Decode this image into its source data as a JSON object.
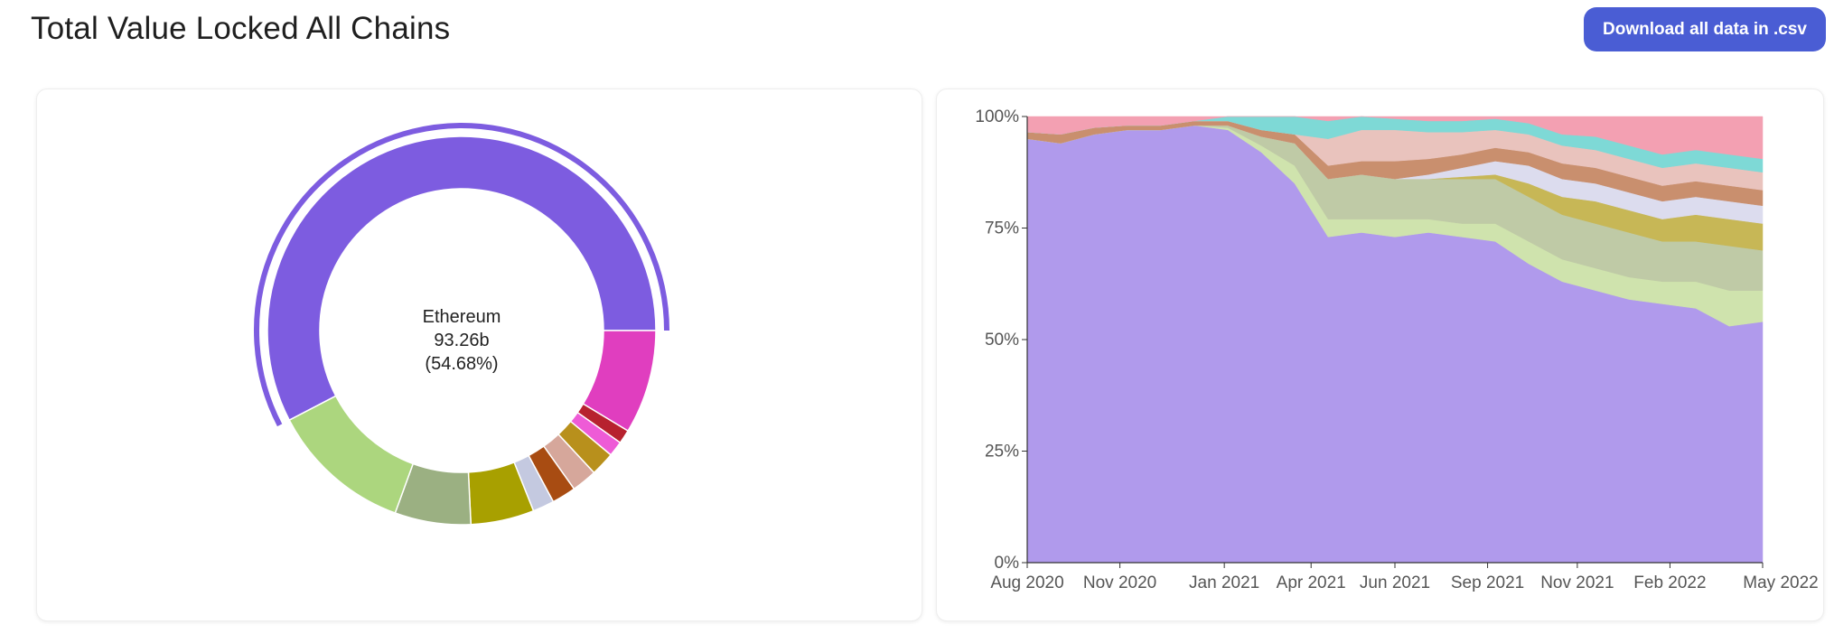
{
  "page": {
    "title": "Total Value Locked All Chains",
    "download_label": "Download all data in .csv"
  },
  "chart_data": [
    {
      "type": "pie",
      "variant": "donut",
      "highlighted": {
        "name": "Ethereum",
        "value_label": "93.26b",
        "percent_label": "(54.68%)"
      },
      "slices": [
        {
          "name": "Ethereum",
          "percent": 54.68,
          "color": "#7d5ce0"
        },
        {
          "name": "",
          "percent": 8.2,
          "color": "#e03ebf"
        },
        {
          "name": "",
          "percent": 1.1,
          "color": "#b7222f"
        },
        {
          "name": "",
          "percent": 1.2,
          "color": "#ee5bd6"
        },
        {
          "name": "",
          "percent": 1.9,
          "color": "#b8901c"
        },
        {
          "name": "",
          "percent": 2.0,
          "color": "#d6a79b"
        },
        {
          "name": "",
          "percent": 1.9,
          "color": "#a84c12"
        },
        {
          "name": "",
          "percent": 1.7,
          "color": "#c4c9e0"
        },
        {
          "name": "",
          "percent": 5.0,
          "color": "#a8a000"
        },
        {
          "name": "",
          "percent": 6.0,
          "color": "#9bb082"
        },
        {
          "name": "",
          "percent": 11.2,
          "color": "#acd67e"
        }
      ]
    },
    {
      "type": "area",
      "stacked": true,
      "normalized": true,
      "ylim": [
        0,
        100
      ],
      "yticks": [
        "0%",
        "25%",
        "50%",
        "75%",
        "100%"
      ],
      "xticks": [
        "Aug 2020",
        "Nov 2020",
        "Jan 2021",
        "Apr 2021",
        "Jun 2021",
        "Sep 2021",
        "Nov 2021",
        "Feb 2022",
        "May 2022"
      ],
      "x": [
        "Jul 2020",
        "Aug 2020",
        "Sep 2020",
        "Oct 2020",
        "Nov 2020",
        "Dec 2020",
        "Jan 2021",
        "Feb 2021",
        "Mar 2021",
        "Apr 2021",
        "May 2021",
        "Jun 2021",
        "Jul 2021",
        "Aug 2021",
        "Sep 2021",
        "Oct 2021",
        "Nov 2021",
        "Dec 2021",
        "Jan 2022",
        "Feb 2022",
        "Mar 2022",
        "Apr 2022",
        "May 2022"
      ],
      "series": [
        {
          "name": "",
          "color": "#b09aec",
          "values": [
            95,
            94,
            96,
            97,
            97,
            98,
            97,
            92,
            85,
            73,
            74,
            73,
            74,
            73,
            72,
            67,
            63,
            61,
            59,
            58,
            57,
            53,
            54
          ]
        },
        {
          "name": "",
          "color": "#cfe3ad",
          "values": [
            0,
            0,
            0,
            0,
            0,
            0,
            0.5,
            1.5,
            4,
            4,
            3,
            4,
            3,
            3,
            4,
            5,
            5,
            5,
            5,
            5,
            6,
            8,
            7
          ]
        },
        {
          "name": "",
          "color": "#bfcaa6",
          "values": [
            0,
            0,
            0,
            0,
            0,
            0,
            0.5,
            2,
            5,
            9,
            10,
            9,
            9,
            10,
            10,
            10,
            10,
            10,
            10,
            9,
            9,
            10,
            9
          ]
        },
        {
          "name": "",
          "color": "#c7b756",
          "values": [
            0,
            0,
            0,
            0,
            0,
            0,
            0,
            0,
            0,
            0,
            0,
            0,
            0,
            0.5,
            1,
            3,
            4,
            5,
            5,
            5,
            6,
            6,
            6
          ]
        },
        {
          "name": "",
          "color": "#dcdcee",
          "values": [
            0,
            0,
            0,
            0,
            0,
            0,
            0,
            0,
            0,
            0,
            0,
            0,
            1,
            2,
            3,
            4,
            4,
            4,
            4,
            4,
            4,
            4,
            4
          ]
        },
        {
          "name": "",
          "color": "#c98f6e",
          "values": [
            1.5,
            2,
            1.5,
            1,
            1,
            1,
            1,
            1.5,
            2,
            3,
            3,
            4,
            3.5,
            3,
            3,
            3,
            3.5,
            3.5,
            3.5,
            3.5,
            3.5,
            3.5,
            3.5
          ]
        },
        {
          "name": "",
          "color": "#e9c3bd",
          "values": [
            0,
            0,
            0,
            0,
            0,
            0,
            0,
            0,
            0,
            6,
            7,
            7,
            6,
            5,
            4,
            4,
            4,
            4,
            4,
            4,
            4,
            4,
            4
          ]
        },
        {
          "name": "",
          "color": "#7ed9d6",
          "values": [
            0,
            0,
            0,
            0,
            0,
            0,
            1,
            3,
            4,
            4,
            3,
            2.5,
            2.5,
            2.5,
            2.5,
            2.5,
            2.5,
            3,
            3,
            3,
            3,
            3,
            3
          ]
        },
        {
          "name": "",
          "color": "#f3a0b2",
          "values": [
            3.5,
            4,
            2.5,
            2,
            2,
            1,
            0,
            0,
            0,
            1,
            0,
            0.5,
            1,
            1,
            0.5,
            1.5,
            4,
            4.5,
            6.5,
            7.5,
            7.5,
            8.5,
            9.5
          ]
        }
      ]
    }
  ]
}
